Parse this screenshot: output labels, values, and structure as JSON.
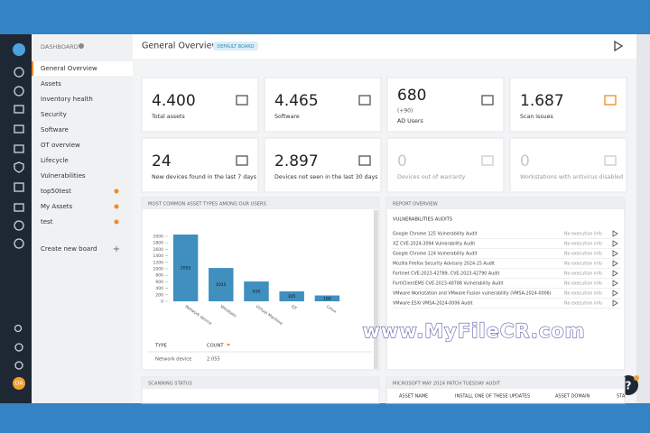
{
  "nav": {
    "heading": "DASHBOARD",
    "items": [
      "General Overview",
      "Assets",
      "Inventory health",
      "Security",
      "Software",
      "OT overview",
      "Lifecycle",
      "Vulnerabilities",
      "top50test",
      "My Assets",
      "test"
    ],
    "create": "Create new board"
  },
  "header": {
    "title": "General Overview",
    "badge": "DEFAULT BOARD"
  },
  "cards": [
    {
      "value": "4.400",
      "label": "Total assets"
    },
    {
      "value": "4.465",
      "label": "Software"
    },
    {
      "value": "680",
      "sub": "(+90)",
      "label": "AD Users"
    },
    {
      "value": "1.687",
      "label": "Scan issues"
    },
    {
      "value": "24",
      "label": "New devices found in the last 7 days"
    },
    {
      "value": "2.897",
      "label": "Devices not seen in the last 30 days"
    },
    {
      "value": "0",
      "label": "Devices out of warranty"
    },
    {
      "value": "0",
      "label": "Workstations with antivirus disabled"
    }
  ],
  "chart_panel": {
    "title": "MOST COMMON ASSET TYPES AMONG OUR USERS",
    "chart_data": {
      "type": "bar",
      "categories": [
        "Network device",
        "Windows",
        "Virtual Machine",
        "OT",
        "Linux"
      ],
      "values": [
        2055,
        1025,
        610,
        305,
        180
      ],
      "color": "#3f8fbf",
      "ylim": [
        0,
        2000
      ],
      "yticks": [
        0,
        200,
        400,
        600,
        800,
        1000,
        1200,
        1400,
        1600,
        1800,
        2000
      ]
    },
    "table": {
      "columns": [
        "TYPE",
        "COUNT"
      ],
      "rows": [
        [
          "Network device",
          "2.055"
        ]
      ]
    }
  },
  "report": {
    "title": "REPORT OVERVIEW",
    "section": "VULNERABILITIES AUDITS",
    "rows": [
      {
        "name": "Google Chrome 125 Vulnerability Audit",
        "status": "No execution info"
      },
      {
        "name": "XZ CVE-2024-3094 Vulnerability Audit",
        "status": "No execution info"
      },
      {
        "name": "Google Chrome 124 Vulnerability Audit",
        "status": "No execution info"
      },
      {
        "name": "Mozilla Firefox Security Advisory 2024-15 Audit",
        "status": "No execution info"
      },
      {
        "name": "Fortinet CVE-2023-42789, CVE-2023-42790 Audit",
        "status": "No execution info"
      },
      {
        "name": "FortiClientEMS CVE-2023-48788 Vulnerability Audit",
        "status": "No execution info"
      },
      {
        "name": "VMware Workstation and VMware Fusion vulnerability (VMSA-2024-0006)",
        "status": "No execution info"
      },
      {
        "name": "VMware ESXi VMSA-2024-0006 Audit",
        "status": "No execution info"
      }
    ]
  },
  "scanning": {
    "title": "SCANNING STATUS"
  },
  "patch": {
    "title": "MICROSOFT MAY 2024 PATCH TUESDAY AUDIT",
    "columns": [
      "ASSET NAME",
      "INSTALL ONE OF THESE UPDATES",
      "ASSET DOMAIN",
      "STA"
    ]
  },
  "user": {
    "initials": "DA"
  },
  "help": "?",
  "watermark": "www.MyFileCR.com"
}
